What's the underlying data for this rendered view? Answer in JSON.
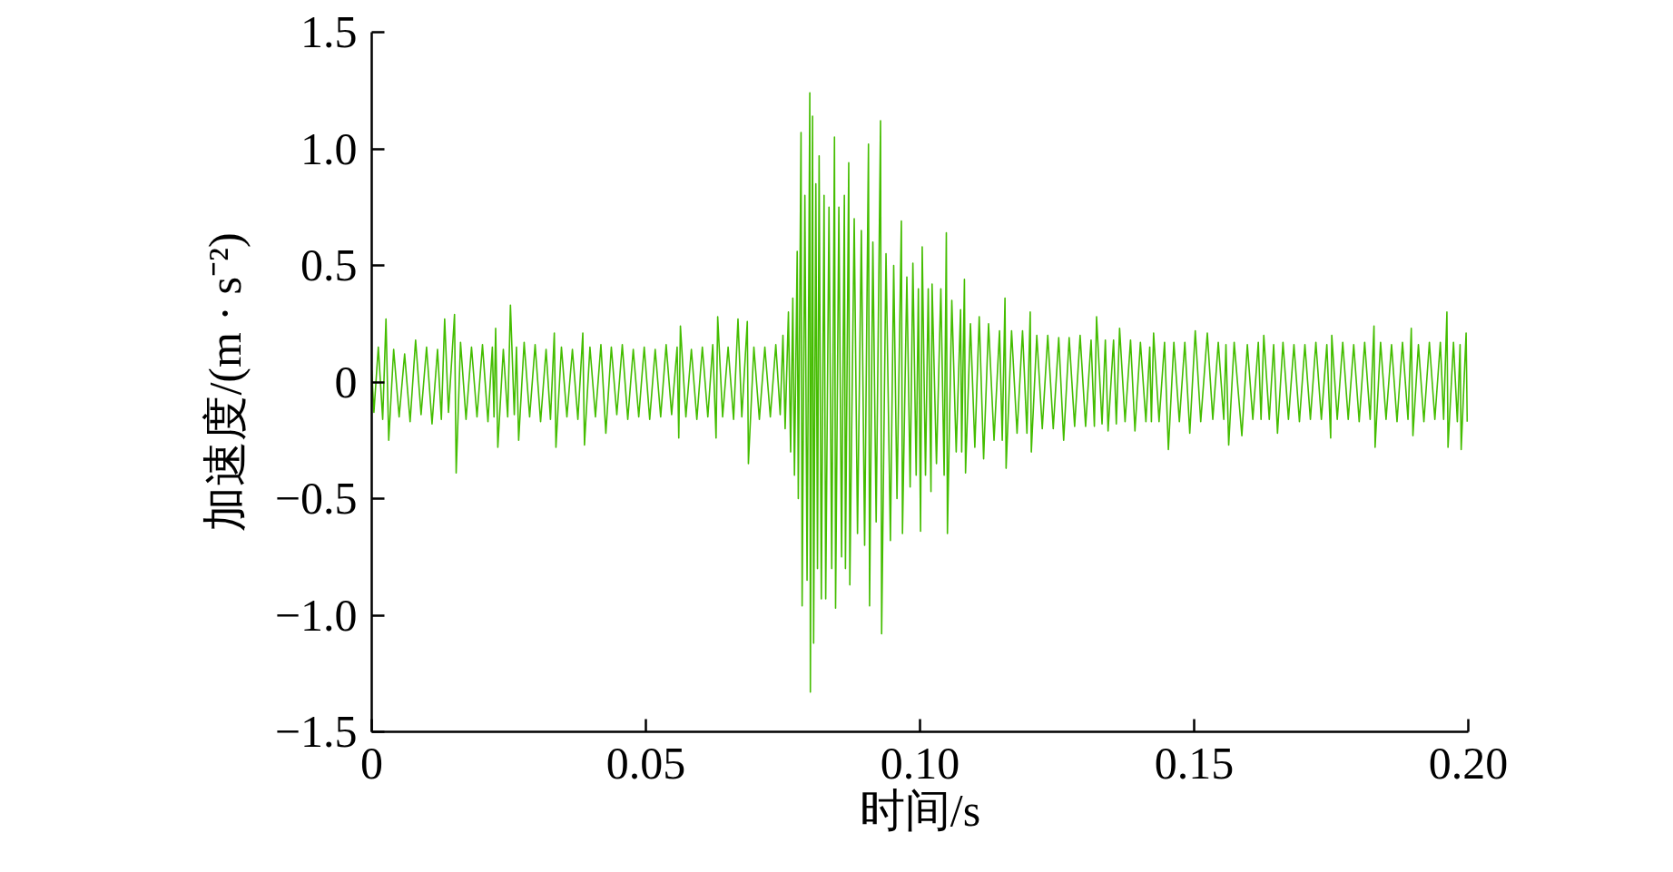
{
  "chart_data": {
    "type": "line",
    "xlabel": "时间/s",
    "ylabel": "加速度/(m · s⁻²)",
    "color": "#44bd00",
    "grid": false,
    "xlim": [
      0,
      0.2
    ],
    "ylim": [
      -1.5,
      1.5
    ],
    "xticks": [
      0,
      0.05,
      {
        "value": 0.1,
        "label": "0.10"
      },
      0.15,
      {
        "value": 0.2,
        "label": "0.20"
      }
    ],
    "yticks": [
      {
        "value": -1.5,
        "label": "−1.5"
      },
      {
        "value": -1,
        "label": "−1.0"
      },
      {
        "value": -0.5,
        "label": "−0.5"
      },
      0,
      0.5,
      {
        "value": 1,
        "label": "1.0"
      },
      1.5
    ],
    "x": [
      0,
      0.0004,
      0.0012,
      0.002,
      0.0026,
      0.0031,
      0.004,
      0.005,
      0.006,
      0.007,
      0.008,
      0.009,
      0.01,
      0.011,
      0.012,
      0.0127,
      0.0133,
      0.014,
      0.0151,
      0.0154,
      0.0162,
      0.0172,
      0.0182,
      0.0192,
      0.0202,
      0.0212,
      0.022,
      0.0223,
      0.0226,
      0.023,
      0.024,
      0.0248,
      0.0253,
      0.026,
      0.0264,
      0.0268,
      0.0278,
      0.0288,
      0.0298,
      0.0308,
      0.0318,
      0.0326,
      0.0333,
      0.0336,
      0.0346,
      0.0356,
      0.0366,
      0.0376,
      0.0385,
      0.0388,
      0.0398,
      0.0408,
      0.0418,
      0.0427,
      0.0437,
      0.0447,
      0.0457,
      0.0467,
      0.0477,
      0.0487,
      0.0497,
      0.0507,
      0.0517,
      0.0527,
      0.0537,
      0.0547,
      0.0557,
      0.056,
      0.0563,
      0.0573,
      0.0583,
      0.0593,
      0.0603,
      0.0613,
      0.0622,
      0.0628,
      0.0631,
      0.064,
      0.065,
      0.066,
      0.0668,
      0.0675,
      0.0685,
      0.0687,
      0.0697,
      0.0707,
      0.0717,
      0.0727,
      0.0737,
      0.0745,
      0.075,
      0.0754,
      0.076,
      0.0764,
      0.0768,
      0.0771,
      0.0776,
      0.0778,
      0.0783,
      0.0785,
      0.079,
      0.0794,
      0.0799,
      0.08,
      0.0804,
      0.0806,
      0.081,
      0.0813,
      0.0816,
      0.082,
      0.0825,
      0.0828,
      0.0834,
      0.0839,
      0.0844,
      0.0846,
      0.0852,
      0.0857,
      0.0862,
      0.0864,
      0.087,
      0.0872,
      0.088,
      0.0886,
      0.0893,
      0.0899,
      0.0906,
      0.0908,
      0.0914,
      0.092,
      0.0928,
      0.093,
      0.0938,
      0.0946,
      0.0952,
      0.0958,
      0.0966,
      0.0968,
      0.0976,
      0.0982,
      0.0987,
      0.0993,
      0.0997,
      0.1001,
      0.1004,
      0.101,
      0.1015,
      0.102,
      0.1022,
      0.103,
      0.1038,
      0.1044,
      0.1048,
      0.105,
      0.1058,
      0.1066,
      0.1074,
      0.1076,
      0.1081,
      0.1083,
      0.1092,
      0.11,
      0.1108,
      0.1116,
      0.1125,
      0.1135,
      0.1145,
      0.115,
      0.1155,
      0.1157,
      0.1167,
      0.1177,
      0.1187,
      0.1195,
      0.1201,
      0.1203,
      0.1213,
      0.1223,
      0.1233,
      0.1243,
      0.1253,
      0.1262,
      0.1272,
      0.1282,
      0.1292,
      0.1302,
      0.1312,
      0.1318,
      0.1322,
      0.1332,
      0.1338,
      0.1343,
      0.1353,
      0.1358,
      0.1364,
      0.1374,
      0.1384,
      0.1392,
      0.1402,
      0.1412,
      0.1419,
      0.1422,
      0.1426,
      0.1436,
      0.1446,
      0.1453,
      0.1463,
      0.1473,
      0.1483,
      0.1492,
      0.1502,
      0.1512,
      0.1524,
      0.1534,
      0.1544,
      0.1554,
      0.1558,
      0.1563,
      0.1573,
      0.1587,
      0.1597,
      0.1607,
      0.1617,
      0.1622,
      0.1627,
      0.1637,
      0.1645,
      0.1652,
      0.1662,
      0.1672,
      0.1682,
      0.1692,
      0.1702,
      0.1712,
      0.1722,
      0.1732,
      0.1742,
      0.1749,
      0.1751,
      0.1761,
      0.1771,
      0.1781,
      0.1791,
      0.1801,
      0.1811,
      0.1821,
      0.1828,
      0.183,
      0.184,
      0.185,
      0.186,
      0.187,
      0.188,
      0.189,
      0.1896,
      0.1899,
      0.1909,
      0.1919,
      0.1929,
      0.1939,
      0.1949,
      0.1955,
      0.1961,
      0.1963,
      0.1973,
      0.198,
      0.1985,
      0.1987,
      0.1996,
      0.1998
    ],
    "values": [
      0.05,
      -0.13,
      0.15,
      -0.16,
      0.27,
      -0.25,
      0.14,
      -0.15,
      0.12,
      -0.17,
      0.18,
      -0.14,
      0.15,
      -0.18,
      0.14,
      -0.16,
      0.27,
      -0.13,
      0.29,
      -0.39,
      0.17,
      -0.16,
      0.15,
      -0.15,
      0.16,
      -0.17,
      0.15,
      -0.15,
      0.23,
      -0.28,
      0.14,
      -0.15,
      0.33,
      -0.14,
      0.15,
      -0.25,
      0.17,
      -0.15,
      0.16,
      -0.17,
      0.14,
      -0.16,
      0.21,
      -0.28,
      0.15,
      -0.15,
      0.14,
      -0.16,
      0.21,
      -0.27,
      0.15,
      -0.15,
      0.16,
      -0.22,
      0.15,
      -0.14,
      0.16,
      -0.16,
      0.14,
      -0.15,
      0.15,
      -0.16,
      0.14,
      -0.15,
      0.16,
      -0.14,
      0.15,
      -0.24,
      0.24,
      -0.15,
      0.14,
      -0.16,
      0.15,
      -0.15,
      0.16,
      -0.24,
      0.28,
      -0.15,
      0.15,
      -0.16,
      0.27,
      -0.15,
      0.26,
      -0.35,
      0.15,
      -0.16,
      0.15,
      -0.15,
      0.16,
      -0.14,
      0.2,
      -0.2,
      0.3,
      -0.3,
      0.36,
      -0.4,
      0.56,
      -0.5,
      1.07,
      -0.96,
      0.8,
      -0.85,
      1.24,
      -1.33,
      1.14,
      -1.12,
      0.85,
      -0.8,
      0.97,
      -0.93,
      0.8,
      -0.93,
      0.75,
      -0.8,
      1.05,
      -0.97,
      0.75,
      -0.75,
      0.8,
      -0.8,
      0.94,
      -0.87,
      0.7,
      -0.65,
      0.65,
      -0.7,
      1.02,
      -0.96,
      0.6,
      -0.6,
      1.12,
      -1.08,
      0.55,
      -0.68,
      0.5,
      -0.5,
      0.69,
      -0.65,
      0.45,
      -0.45,
      0.51,
      -0.4,
      0.4,
      -0.64,
      0.58,
      -0.4,
      0.4,
      -0.47,
      0.42,
      -0.35,
      0.4,
      -0.4,
      0.64,
      -0.65,
      0.35,
      -0.3,
      0.31,
      -0.3,
      0.44,
      -0.39,
      0.25,
      -0.28,
      0.28,
      -0.33,
      0.25,
      -0.25,
      0.22,
      -0.25,
      0.36,
      -0.37,
      0.22,
      -0.22,
      0.22,
      -0.22,
      0.3,
      -0.3,
      0.2,
      -0.2,
      0.2,
      -0.2,
      0.19,
      -0.25,
      0.19,
      -0.19,
      0.2,
      -0.19,
      0.18,
      -0.19,
      0.28,
      -0.18,
      0.18,
      -0.21,
      0.18,
      -0.18,
      0.23,
      -0.17,
      0.18,
      -0.21,
      0.17,
      -0.17,
      0.15,
      -0.17,
      0.21,
      -0.17,
      0.17,
      -0.29,
      0.17,
      -0.17,
      0.17,
      -0.22,
      0.22,
      -0.17,
      0.21,
      -0.16,
      0.17,
      -0.16,
      0.16,
      -0.27,
      0.17,
      -0.23,
      0.16,
      -0.16,
      0.17,
      -0.16,
      0.2,
      -0.16,
      0.16,
      -0.22,
      0.17,
      -0.16,
      0.16,
      -0.17,
      0.16,
      -0.16,
      0.17,
      -0.16,
      0.16,
      -0.24,
      0.2,
      -0.16,
      0.17,
      -0.16,
      0.16,
      -0.17,
      0.17,
      -0.16,
      0.24,
      -0.28,
      0.17,
      -0.16,
      0.16,
      -0.17,
      0.17,
      -0.16,
      0.23,
      -0.23,
      0.16,
      -0.17,
      0.17,
      -0.16,
      0.17,
      -0.16,
      0.3,
      -0.28,
      0.17,
      -0.17,
      0.16,
      -0.29,
      0.21,
      -0.17
    ]
  }
}
